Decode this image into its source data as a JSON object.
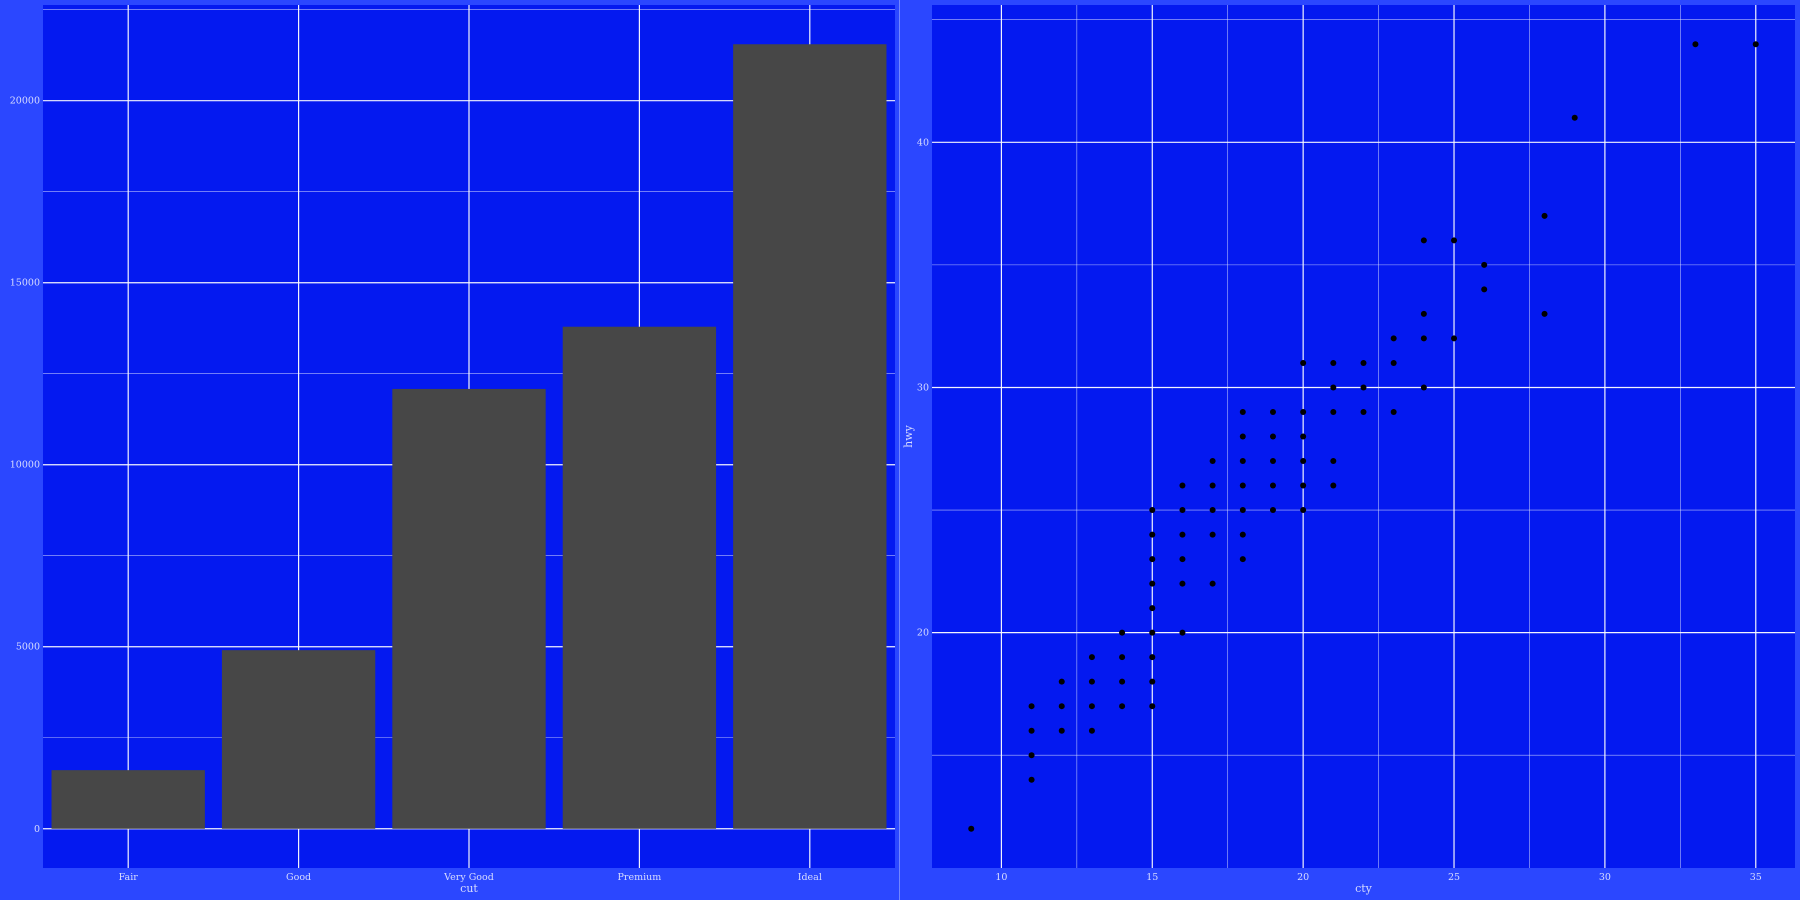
{
  "colors": {
    "panel_background": "#2b47ff",
    "plot_background": "#0419f0",
    "grid": "#ffffff",
    "bar_fill": "#474747",
    "point": "#000000",
    "text": "#d8dcff"
  },
  "chart_data": [
    {
      "type": "bar",
      "categories": [
        "Fair",
        "Good",
        "Very Good",
        "Premium",
        "Ideal"
      ],
      "values": [
        1610,
        4906,
        12082,
        13791,
        21551
      ],
      "title": "",
      "xlabel": "cut",
      "ylabel": "",
      "ylim": [
        -1078,
        22629
      ],
      "y_ticks": [
        0,
        5000,
        10000,
        15000,
        20000
      ],
      "y_tick_labels": [
        "0",
        "5000",
        "10000",
        "15000",
        "20000"
      ],
      "grid": true,
      "legend": "none"
    },
    {
      "type": "scatter",
      "title": "",
      "xlabel": "cty",
      "ylabel": "hwy",
      "xlim": [
        7.7,
        36.3
      ],
      "ylim": [
        10.4,
        45.6
      ],
      "x_ticks": [
        10,
        15,
        20,
        25,
        30,
        35
      ],
      "x_tick_labels": [
        "10",
        "15",
        "20",
        "25",
        "30",
        "35"
      ],
      "y_ticks": [
        20,
        30,
        40
      ],
      "y_tick_labels": [
        "20",
        "30",
        "40"
      ],
      "grid": true,
      "legend": "none",
      "points": [
        [
          9,
          12
        ],
        [
          11,
          14
        ],
        [
          11,
          15
        ],
        [
          11,
          16
        ],
        [
          11,
          17
        ],
        [
          12,
          16
        ],
        [
          12,
          17
        ],
        [
          12,
          18
        ],
        [
          13,
          16
        ],
        [
          13,
          17
        ],
        [
          13,
          18
        ],
        [
          13,
          19
        ],
        [
          14,
          17
        ],
        [
          14,
          18
        ],
        [
          14,
          19
        ],
        [
          14,
          20
        ],
        [
          15,
          17
        ],
        [
          15,
          18
        ],
        [
          15,
          19
        ],
        [
          15,
          20
        ],
        [
          15,
          21
        ],
        [
          15,
          22
        ],
        [
          15,
          23
        ],
        [
          15,
          24
        ],
        [
          15,
          25
        ],
        [
          16,
          20
        ],
        [
          16,
          22
        ],
        [
          16,
          23
        ],
        [
          16,
          24
        ],
        [
          16,
          25
        ],
        [
          16,
          26
        ],
        [
          17,
          22
        ],
        [
          17,
          24
        ],
        [
          17,
          25
        ],
        [
          17,
          26
        ],
        [
          17,
          27
        ],
        [
          18,
          23
        ],
        [
          18,
          24
        ],
        [
          18,
          25
        ],
        [
          18,
          26
        ],
        [
          18,
          27
        ],
        [
          18,
          28
        ],
        [
          18,
          29
        ],
        [
          19,
          25
        ],
        [
          19,
          26
        ],
        [
          19,
          27
        ],
        [
          19,
          28
        ],
        [
          19,
          29
        ],
        [
          20,
          25
        ],
        [
          20,
          26
        ],
        [
          20,
          27
        ],
        [
          20,
          28
        ],
        [
          20,
          29
        ],
        [
          20,
          31
        ],
        [
          21,
          26
        ],
        [
          21,
          27
        ],
        [
          21,
          29
        ],
        [
          21,
          30
        ],
        [
          21,
          31
        ],
        [
          22,
          29
        ],
        [
          22,
          30
        ],
        [
          22,
          31
        ],
        [
          23,
          29
        ],
        [
          23,
          31
        ],
        [
          23,
          32
        ],
        [
          24,
          30
        ],
        [
          24,
          32
        ],
        [
          24,
          33
        ],
        [
          24,
          36
        ],
        [
          25,
          32
        ],
        [
          25,
          36
        ],
        [
          26,
          34
        ],
        [
          26,
          35
        ],
        [
          28,
          33
        ],
        [
          28,
          37
        ],
        [
          29,
          41
        ],
        [
          33,
          44
        ],
        [
          35,
          44
        ]
      ]
    }
  ]
}
